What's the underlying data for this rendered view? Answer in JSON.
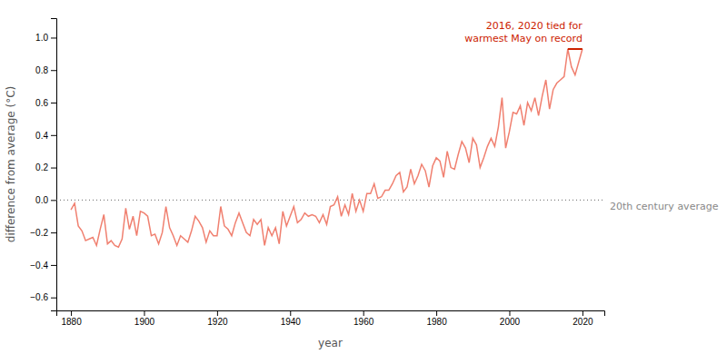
{
  "chart_data": {
    "type": "line",
    "x": [
      1880,
      1881,
      1882,
      1883,
      1884,
      1885,
      1886,
      1887,
      1888,
      1889,
      1890,
      1891,
      1892,
      1893,
      1894,
      1895,
      1896,
      1897,
      1898,
      1899,
      1900,
      1901,
      1902,
      1903,
      1904,
      1905,
      1906,
      1907,
      1908,
      1909,
      1910,
      1911,
      1912,
      1913,
      1914,
      1915,
      1916,
      1917,
      1918,
      1919,
      1920,
      1921,
      1922,
      1923,
      1924,
      1925,
      1926,
      1927,
      1928,
      1929,
      1930,
      1931,
      1932,
      1933,
      1934,
      1935,
      1936,
      1937,
      1938,
      1939,
      1940,
      1941,
      1942,
      1943,
      1944,
      1945,
      1946,
      1947,
      1948,
      1949,
      1950,
      1951,
      1952,
      1953,
      1954,
      1955,
      1956,
      1957,
      1958,
      1959,
      1960,
      1961,
      1962,
      1963,
      1964,
      1965,
      1966,
      1967,
      1968,
      1969,
      1970,
      1971,
      1972,
      1973,
      1974,
      1975,
      1976,
      1977,
      1978,
      1979,
      1980,
      1981,
      1982,
      1983,
      1984,
      1985,
      1986,
      1987,
      1988,
      1989,
      1990,
      1991,
      1992,
      1993,
      1994,
      1995,
      1996,
      1997,
      1998,
      1999,
      2000,
      2001,
      2002,
      2003,
      2004,
      2005,
      2006,
      2007,
      2008,
      2009,
      2010,
      2011,
      2012,
      2013,
      2014,
      2015,
      2016,
      2017,
      2018,
      2019,
      2020
    ],
    "values": [
      -0.06,
      -0.02,
      -0.16,
      -0.19,
      -0.25,
      -0.24,
      -0.23,
      -0.28,
      -0.18,
      -0.09,
      -0.27,
      -0.25,
      -0.28,
      -0.29,
      -0.24,
      -0.05,
      -0.18,
      -0.1,
      -0.22,
      -0.07,
      -0.08,
      -0.1,
      -0.22,
      -0.21,
      -0.27,
      -0.2,
      -0.04,
      -0.17,
      -0.22,
      -0.28,
      -0.22,
      -0.24,
      -0.26,
      -0.19,
      -0.1,
      -0.13,
      -0.17,
      -0.26,
      -0.19,
      -0.22,
      -0.22,
      -0.04,
      -0.16,
      -0.18,
      -0.22,
      -0.14,
      -0.08,
      -0.14,
      -0.2,
      -0.22,
      -0.12,
      -0.15,
      -0.12,
      -0.28,
      -0.17,
      -0.22,
      -0.17,
      -0.27,
      -0.07,
      -0.16,
      -0.1,
      -0.04,
      -0.14,
      -0.12,
      -0.08,
      -0.1,
      -0.09,
      -0.1,
      -0.14,
      -0.09,
      -0.15,
      -0.04,
      -0.03,
      0.02,
      -0.1,
      -0.03,
      -0.09,
      0.04,
      -0.07,
      0.0,
      -0.07,
      0.04,
      0.04,
      0.1,
      0.01,
      0.02,
      0.06,
      0.06,
      0.1,
      0.15,
      0.17,
      0.05,
      0.08,
      0.19,
      0.1,
      0.15,
      0.22,
      0.18,
      0.08,
      0.21,
      0.26,
      0.24,
      0.14,
      0.3,
      0.2,
      0.19,
      0.28,
      0.36,
      0.32,
      0.23,
      0.38,
      0.34,
      0.2,
      0.26,
      0.33,
      0.38,
      0.33,
      0.45,
      0.63,
      0.32,
      0.42,
      0.54,
      0.53,
      0.58,
      0.46,
      0.6,
      0.55,
      0.63,
      0.52,
      0.64,
      0.74,
      0.56,
      0.68,
      0.72,
      0.74,
      0.76,
      0.93,
      0.82,
      0.77,
      0.85,
      0.93
    ],
    "color": "#f08070",
    "xlabel": "year",
    "ylabel": "difference from average (°C)",
    "xlim": [
      1876,
      2026
    ],
    "ylim": [
      -0.68,
      1.12
    ],
    "xticks": [
      1880,
      1900,
      1920,
      1940,
      1960,
      1980,
      2000,
      2020
    ],
    "yticks": [
      {
        "value": -0.6,
        "label": "−0.6"
      },
      {
        "value": -0.4,
        "label": "−0.4"
      },
      {
        "value": -0.2,
        "label": "−0.2"
      },
      {
        "value": 0,
        "label": "0.0"
      },
      0.2,
      0.4,
      0.6,
      0.8,
      {
        "value": 1,
        "label": "1.0"
      }
    ],
    "grid": false,
    "annotations": [
      {
        "text": "20th century average",
        "y": 0,
        "color": "#888888",
        "line_style": "dotted"
      },
      {
        "text": "2016, 2020 tied for\nwarmest May on record",
        "x": [
          2016,
          2020
        ],
        "y": 0.93,
        "color": "#cc2200"
      }
    ]
  }
}
